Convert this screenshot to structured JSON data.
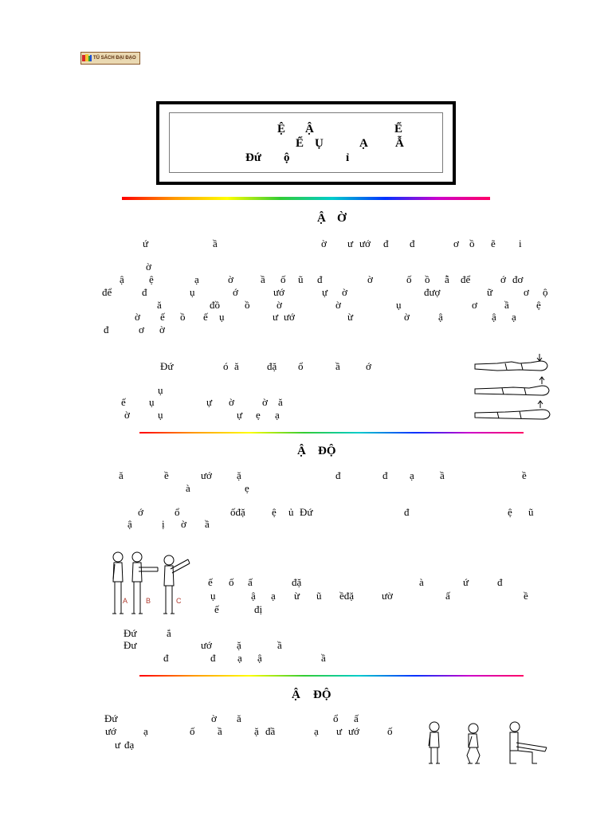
{
  "logo": {
    "text": "TỦ SÁCH ĐẠI ĐẠO"
  },
  "colors": {
    "text": "#000000",
    "figure_labels": "#b03a2e",
    "rainbow": [
      "#ff0000",
      "#ff9900",
      "#ffff00",
      "#33cc33",
      "#00cccc",
      "#0033ff",
      "#cc00cc",
      "#ff0066"
    ]
  },
  "title": {
    "line1": [
      "Ệ",
      "Ậ",
      "Ể"
    ],
    "line2": [
      "Ể",
      "Ụ",
      "Ạ",
      "Ẫ"
    ],
    "line3": [
      "Đứ",
      "ộ",
      "ỉ"
    ]
  },
  "s1": {
    "heading": [
      "Ậ",
      "Ờ"
    ],
    "lines": [
      [
        "ứ",
        "ầ",
        "ờ",
        "ư",
        "ướ",
        "đ",
        "đ",
        "ơ",
        "ồ",
        "ẽ",
        "i"
      ],
      [
        "ờ"
      ],
      [
        "ậ",
        "ệ",
        "ạ",
        "ờ",
        "ầ",
        "ố",
        "ũ",
        "đ",
        "ờ",
        "ố",
        "ồ",
        "ẫ",
        "để",
        "ớ",
        "đơ"
      ],
      [
        "để",
        "đ",
        "ụ",
        "ớ",
        "ướ",
        "ự",
        "ờ",
        "đượ",
        "ữ",
        "ơ",
        "ộ"
      ],
      [
        "ă",
        "đồ",
        "ồ",
        "ờ",
        "ờ",
        "ụ",
        "ơ",
        "ầ",
        "ệ"
      ],
      [
        "ờ",
        "ế",
        "ồ",
        "ế",
        "ụ",
        "ư",
        "ướ",
        "ừ",
        "ờ",
        "ậ",
        "ậ",
        "ạ"
      ],
      [
        "đ",
        "ơ",
        "ờ"
      ],
      [
        "Đứ",
        "ó",
        "ă",
        "đặ",
        "ổ",
        "ầ",
        "ớ"
      ],
      [
        "ụ"
      ],
      [
        "ế",
        "ụ",
        "ự",
        "ờ",
        "ờ",
        "ă"
      ],
      [
        "ờ",
        "ụ",
        "ự",
        "ẹ",
        "ạ"
      ]
    ]
  },
  "s2": {
    "heading": [
      "Ậ",
      "ĐỘ"
    ],
    "lines": [
      [
        "ă",
        "ề",
        "ướ",
        "ặ",
        "đ",
        "đ",
        "ạ",
        "ầ",
        "ề"
      ],
      [
        "à",
        "ẹ"
      ],
      [
        "ớ",
        "ổ",
        "ốđặ",
        "ệ",
        "ủ",
        "Đứ",
        "đ",
        "ệ",
        "ũ"
      ],
      [
        "ậ",
        "ị",
        "ờ",
        "ầ"
      ],
      [
        "ế",
        "ố",
        "ấ",
        "đặ",
        "à",
        "ứ",
        "đ"
      ],
      [
        "ụ",
        "ậ",
        "ạ",
        "ừ",
        "ũ",
        "ềđặ",
        "ườ",
        "ấ",
        "ề"
      ],
      [
        "ế",
        "đị"
      ],
      [
        "Đứ",
        "ắ"
      ],
      [
        "Đư",
        "ướ",
        "ặ",
        "ầ"
      ],
      [
        "đ",
        "đ",
        "ạ",
        "ậ",
        "ầ"
      ]
    ]
  },
  "s3": {
    "heading": [
      "Ậ",
      "ĐỘ"
    ],
    "lines": [
      [
        "Đứ",
        "ờ",
        "ă",
        "ổ",
        "ấ"
      ],
      [
        "ướ",
        "ạ",
        "ố",
        "ầ",
        "ặ",
        "đầ",
        "ạ",
        "ư",
        "ướ",
        "ố"
      ],
      [
        "ư",
        "đạ"
      ]
    ]
  },
  "figures": {
    "labels": [
      "A",
      "B",
      "C"
    ]
  }
}
